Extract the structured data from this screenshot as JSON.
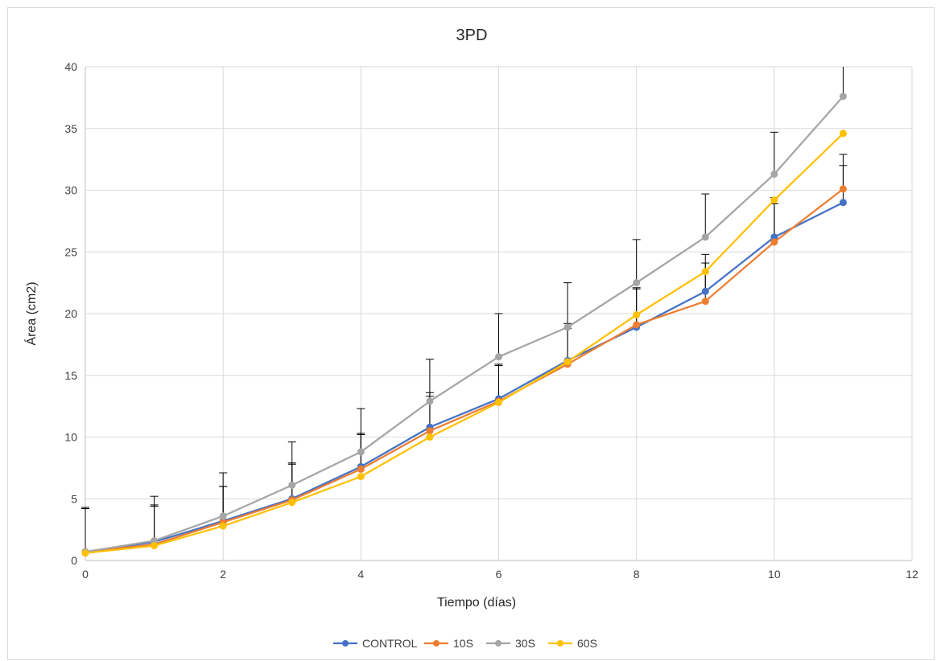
{
  "chart_data": {
    "type": "line",
    "title": "3PD",
    "xlabel": "Tiempo (días)",
    "ylabel": "Área (cm2)",
    "xlim": [
      0,
      12
    ],
    "ylim": [
      0,
      40
    ],
    "x_ticks": [
      0,
      2,
      4,
      6,
      8,
      10,
      12
    ],
    "y_ticks": [
      0,
      5,
      10,
      15,
      20,
      25,
      30,
      35,
      40
    ],
    "grid": true,
    "legend_position": "bottom",
    "x": [
      0,
      1,
      2,
      3,
      4,
      5,
      6,
      7,
      8,
      9,
      10,
      11
    ],
    "series": [
      {
        "name": "CONTROL",
        "color": "#4472C4",
        "values": [
          0.7,
          1.5,
          3.2,
          5.0,
          7.6,
          10.8,
          13.1,
          16.2,
          18.9,
          21.8,
          26.2,
          29.0
        ],
        "error": [
          3.5,
          3.0,
          2.8,
          2.9,
          2.7,
          2.8,
          2.8,
          3.0,
          3.1,
          3.0,
          3.2,
          3.0
        ]
      },
      {
        "name": "10S",
        "color": "#ED7D31",
        "values": [
          0.7,
          1.3,
          3.1,
          4.9,
          7.4,
          10.5,
          12.9,
          15.9,
          19.1,
          21.0,
          25.8,
          30.1
        ],
        "error": [
          3.6,
          3.1,
          2.9,
          2.9,
          2.8,
          2.8,
          2.9,
          2.9,
          3.0,
          3.1,
          3.1,
          2.8
        ]
      },
      {
        "name": "30S",
        "color": "#A5A5A5",
        "values": [
          0.7,
          1.6,
          3.6,
          6.1,
          8.8,
          12.9,
          16.5,
          18.9,
          22.5,
          26.2,
          31.3,
          37.6
        ],
        "error": [
          3.5,
          3.6,
          3.5,
          3.5,
          3.5,
          3.4,
          3.5,
          3.6,
          3.5,
          3.5,
          3.4,
          3.3
        ]
      },
      {
        "name": "60S",
        "color": "#FFC000",
        "values": [
          0.6,
          1.2,
          2.8,
          4.7,
          6.8,
          10.0,
          12.8,
          16.1,
          19.9,
          23.4,
          29.2,
          34.6
        ],
        "error": [
          0,
          0,
          0,
          0,
          0,
          0,
          0,
          0,
          0,
          0,
          0,
          0
        ]
      }
    ]
  }
}
